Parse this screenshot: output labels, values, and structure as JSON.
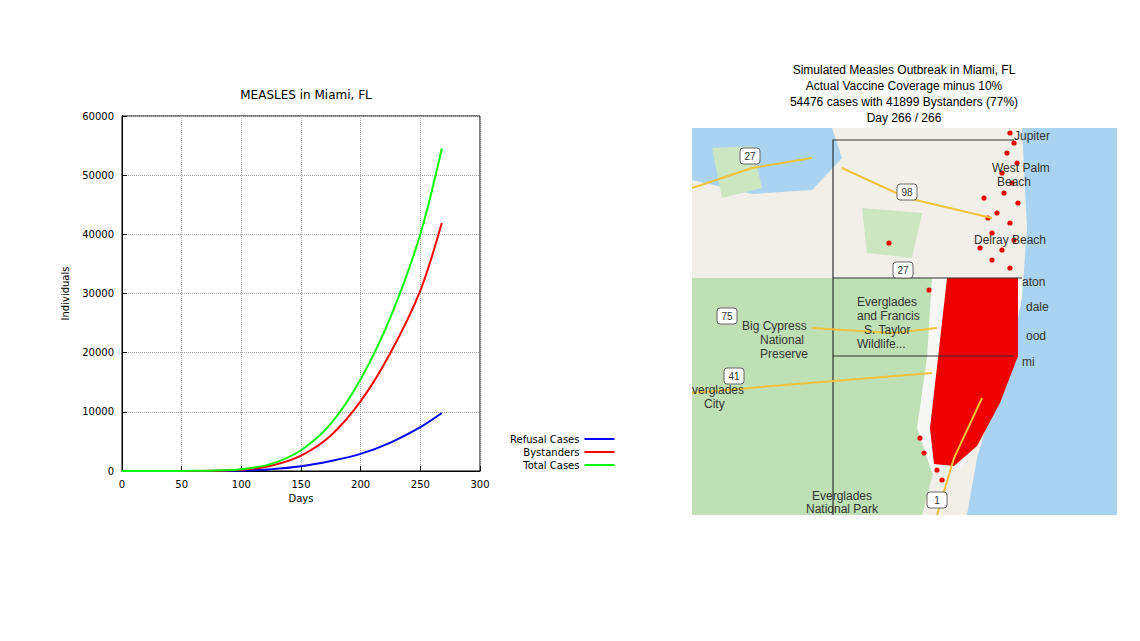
{
  "chart_data": {
    "type": "line",
    "title": "MEASLES in Miami, FL",
    "x_label": "Days",
    "y_label": "Individuals",
    "x": [
      0,
      25,
      50,
      75,
      100,
      125,
      150,
      175,
      200,
      225,
      250,
      268
    ],
    "series": [
      {
        "name": "Refusal Cases",
        "color": "#0000ff",
        "values": [
          0,
          1,
          8,
          20,
          100,
          300,
          800,
          1700,
          2900,
          4800,
          7400,
          9800
        ]
      },
      {
        "name": "Bystanders",
        "color": "#ff0000",
        "values": [
          0,
          1,
          12,
          40,
          200,
          900,
          2600,
          6000,
          11800,
          20000,
          30500,
          41900
        ]
      },
      {
        "name": "Total Cases",
        "color": "#00ff00",
        "values": [
          0,
          2,
          20,
          60,
          300,
          1200,
          3500,
          8000,
          15500,
          26000,
          40000,
          54500
        ]
      }
    ],
    "xlim": [
      0,
      300
    ],
    "xticks": [
      0,
      50,
      100,
      150,
      200,
      250,
      300
    ],
    "ylim": [
      0,
      60000
    ],
    "yticks": [
      0,
      10000,
      20000,
      30000,
      40000,
      50000,
      60000
    ],
    "grid": true,
    "legend": "lower right"
  },
  "map": {
    "title": [
      "Simulated Measles Outbreak in Miami, FL",
      "Actual Vaccine Coverage minus 10%",
      "54476 cases with 41899 Bystanders (77%)",
      "Day 266 / 266"
    ],
    "place_labels": [
      "Jupiter",
      "West Palm",
      "Beach",
      "Delray Beach",
      "aton",
      "dale",
      "ood",
      "mi",
      "Everglades",
      "and Francis",
      "S. Taylor",
      "Wildlife...",
      "Big Cypress",
      "National",
      "Preserve",
      "verglades",
      "City",
      "Everglades",
      "National Park"
    ],
    "road_labels": [
      "27",
      "98",
      "27",
      "75",
      "41",
      "1"
    ]
  }
}
